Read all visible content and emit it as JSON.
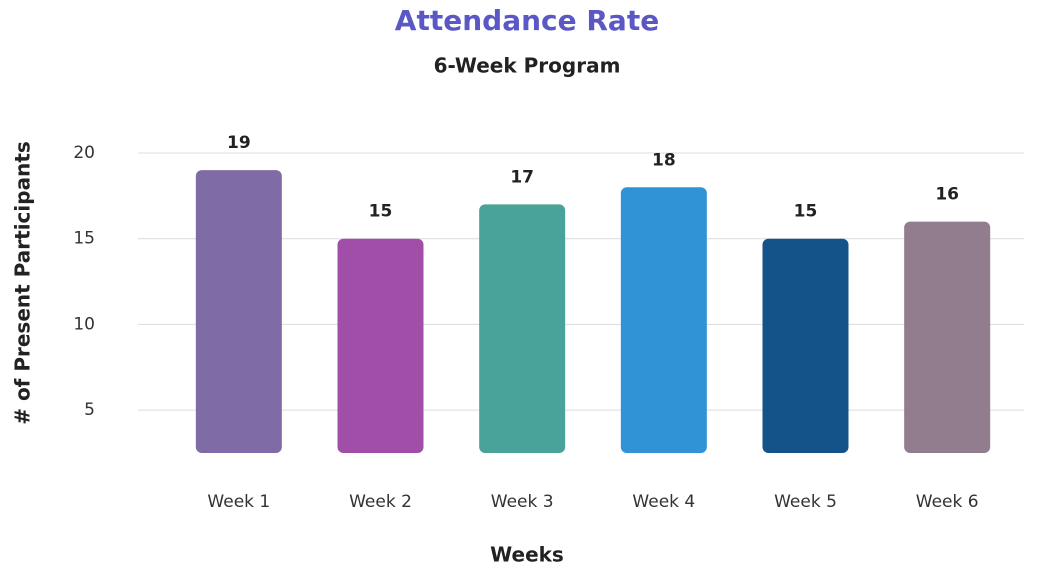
{
  "chart_data": {
    "type": "bar",
    "title": "Attendance Rate",
    "subtitle": "6-Week Program",
    "x_label": "Weeks",
    "y_label": "# of Present Participants",
    "categories": [
      "Week 1",
      "Week 2",
      "Week 3",
      "Week 4",
      "Week 5",
      "Week 6"
    ],
    "values": [
      19,
      15,
      17,
      18,
      15,
      16
    ],
    "colors": [
      "#7f6ca6",
      "#a04ea8",
      "#4aa39a",
      "#2f93d6",
      "#14538a",
      "#927d8f"
    ],
    "ylim": [
      2.5,
      20
    ],
    "yticks": [
      5,
      10,
      15,
      20
    ],
    "grid": true
  }
}
